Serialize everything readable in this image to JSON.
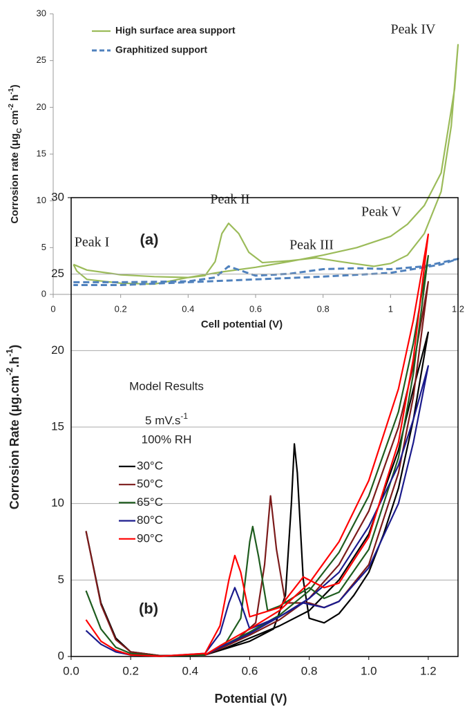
{
  "chart_data": [
    {
      "type": "line",
      "x_label": "Cell potential (V)",
      "y_label": [
        "Corrosion rate (μg",
        "C",
        " cm",
        "-2",
        " h",
        "-1",
        ")"
      ],
      "xlim": [
        0,
        1.2
      ],
      "ylim": [
        0,
        30
      ],
      "xticks": [
        0,
        0.2,
        0.4,
        0.6,
        0.8,
        1,
        1.2
      ],
      "yticks": [
        0,
        5,
        10,
        15,
        20,
        25,
        30
      ],
      "grid": false,
      "legend": "upper left",
      "annotations": [
        "Peak I",
        "Peak II",
        "Peak III",
        "Peak IV",
        "Peak V",
        "(a)"
      ],
      "series": [
        {
          "name": "High surface area support",
          "color": "#9bbb59",
          "line_style": "solid",
          "x": [
            0.06,
            0.1,
            0.2,
            0.3,
            0.4,
            0.45,
            0.48,
            0.5,
            0.52,
            0.55,
            0.58,
            0.62,
            0.7,
            0.78,
            0.85,
            0.95,
            1.0,
            1.05,
            1.1,
            1.15,
            1.18,
            1.2,
            1.19,
            1.15,
            1.1,
            1.05,
            1.0,
            0.9,
            0.8,
            0.7,
            0.6,
            0.5,
            0.4,
            0.3,
            0.2,
            0.1,
            0.07,
            0.06
          ],
          "values": [
            3.2,
            2.6,
            2.1,
            1.9,
            1.8,
            2.0,
            3.5,
            6.5,
            7.6,
            6.5,
            4.5,
            3.4,
            3.6,
            3.9,
            3.5,
            3.0,
            3.3,
            4.2,
            6.5,
            11,
            18,
            26.7,
            22,
            13,
            9.5,
            7.5,
            6.2,
            5.0,
            4.2,
            3.5,
            2.9,
            2.4,
            1.8,
            1.1,
            1.2,
            1.6,
            2.5,
            3.2
          ]
        },
        {
          "name": "Graphitized support",
          "color": "#4f81bd",
          "line_style": "dashed",
          "x": [
            0.06,
            0.2,
            0.4,
            0.48,
            0.52,
            0.56,
            0.6,
            0.7,
            0.8,
            0.9,
            1.0,
            1.1,
            1.2,
            1.15,
            1.0,
            0.8,
            0.6,
            0.4,
            0.2,
            0.06
          ],
          "values": [
            1.3,
            1.3,
            1.4,
            1.8,
            3.0,
            2.5,
            2.0,
            2.2,
            2.7,
            2.8,
            2.7,
            3.0,
            3.8,
            3.2,
            2.3,
            1.9,
            1.6,
            1.3,
            1.0,
            1.0
          ]
        }
      ]
    },
    {
      "type": "line",
      "x_label": "Potential (V)",
      "y_label": [
        "Corrosion Rate (μg.cm",
        "-2",
        ".h",
        "-1",
        ")"
      ],
      "xlim": [
        0,
        1.3
      ],
      "ylim": [
        0,
        30
      ],
      "xticks": [
        {
          "value": 0,
          "label": "0.0"
        },
        0.2,
        0.4,
        0.6,
        0.8,
        {
          "value": 1,
          "label": "1.0"
        },
        1.2
      ],
      "yticks": [
        0,
        5,
        10,
        15,
        20,
        25,
        30
      ],
      "grid": true,
      "legend": "center left",
      "annotations": [
        "Model Results",
        [
          "5 mV.s",
          "-1"
        ],
        "100% RH",
        "(b)"
      ],
      "series": [
        {
          "name": "30°C",
          "color": "#000000",
          "x": [
            0.05,
            0.1,
            0.15,
            0.2,
            0.3,
            0.45,
            0.6,
            0.68,
            0.72,
            0.74,
            0.75,
            0.76,
            0.78,
            0.8,
            0.85,
            0.9,
            0.95,
            1.0,
            1.05,
            1.1,
            1.15,
            1.2,
            1.15,
            1.1,
            1.0,
            0.9,
            0.8,
            0.7,
            0.6,
            0.5,
            0.45
          ],
          "values": [
            8.2,
            3.5,
            1.2,
            0.3,
            0.05,
            0.1,
            1.0,
            1.8,
            4,
            10,
            13.9,
            12,
            5,
            2.5,
            2.2,
            2.8,
            4,
            5.5,
            8,
            11,
            15.5,
            21.2,
            17.5,
            13.5,
            8,
            5,
            3.0,
            2.0,
            1.2,
            0.4,
            0.1
          ]
        },
        {
          "name": "50°C",
          "color": "#7b1a1a",
          "x": [
            0.05,
            0.1,
            0.15,
            0.2,
            0.3,
            0.45,
            0.55,
            0.62,
            0.65,
            0.67,
            0.69,
            0.72,
            0.8,
            0.85,
            0.9,
            1.0,
            1.1,
            1.15,
            1.2,
            1.15,
            1.1,
            1.0,
            0.9,
            0.8,
            0.7,
            0.6,
            0.5,
            0.45
          ],
          "values": [
            8.2,
            3.4,
            1.1,
            0.3,
            0.05,
            0.1,
            1.0,
            2.2,
            6,
            10.5,
            7,
            3.5,
            3.5,
            3.2,
            3.6,
            6,
            12,
            17,
            24.5,
            19,
            15,
            9.5,
            6,
            3.8,
            2.4,
            1.4,
            0.5,
            0.1
          ]
        },
        {
          "name": "65°C",
          "color": "#1e5c1e",
          "x": [
            0.05,
            0.1,
            0.15,
            0.2,
            0.3,
            0.45,
            0.52,
            0.57,
            0.6,
            0.61,
            0.63,
            0.66,
            0.7,
            0.8,
            0.85,
            0.9,
            1.0,
            1.1,
            1.15,
            1.2,
            1.15,
            1.1,
            1.0,
            0.9,
            0.8,
            0.7,
            0.6,
            0.5,
            0.45
          ],
          "values": [
            4.3,
            1.8,
            0.6,
            0.2,
            0.03,
            0.1,
            0.9,
            2.5,
            7.5,
            8.5,
            6.5,
            3,
            3.3,
            4.5,
            3.8,
            4.2,
            7,
            13,
            18.5,
            26.2,
            20.5,
            16,
            10.5,
            6.8,
            4.3,
            2.7,
            1.6,
            0.6,
            0.1
          ]
        },
        {
          "name": "80°C",
          "color": "#1a1a8c",
          "x": [
            0.05,
            0.1,
            0.15,
            0.2,
            0.3,
            0.45,
            0.5,
            0.53,
            0.55,
            0.57,
            0.6,
            0.7,
            0.78,
            0.85,
            0.9,
            1.0,
            1.1,
            1.15,
            1.2,
            1.15,
            1.1,
            1.0,
            0.9,
            0.8,
            0.7,
            0.6,
            0.5,
            0.45
          ],
          "values": [
            1.7,
            0.8,
            0.3,
            0.1,
            0.02,
            0.2,
            1.5,
            3.5,
            4.5,
            3.5,
            1.8,
            2.6,
            3.5,
            3.2,
            3.6,
            5.8,
            10,
            14,
            19,
            15.5,
            12.5,
            8.5,
            5.5,
            3.8,
            2.6,
            1.5,
            0.6,
            0.1
          ]
        },
        {
          "name": "90°C",
          "color": "#ff0000",
          "x": [
            0.05,
            0.1,
            0.15,
            0.2,
            0.3,
            0.45,
            0.5,
            0.53,
            0.55,
            0.57,
            0.6,
            0.7,
            0.78,
            0.85,
            0.9,
            1.0,
            1.1,
            1.15,
            1.2,
            1.15,
            1.1,
            1.0,
            0.9,
            0.8,
            0.7,
            0.6,
            0.5,
            0.45
          ],
          "values": [
            2.4,
            1.0,
            0.4,
            0.1,
            0.02,
            0.2,
            2,
            5,
            6.6,
            5.5,
            2.6,
            3.2,
            5.2,
            4.5,
            4.8,
            7.8,
            14,
            19.5,
            27.6,
            22,
            17.5,
            11.5,
            7.5,
            4.8,
            3.0,
            1.8,
            0.7,
            0.1
          ]
        }
      ]
    }
  ]
}
